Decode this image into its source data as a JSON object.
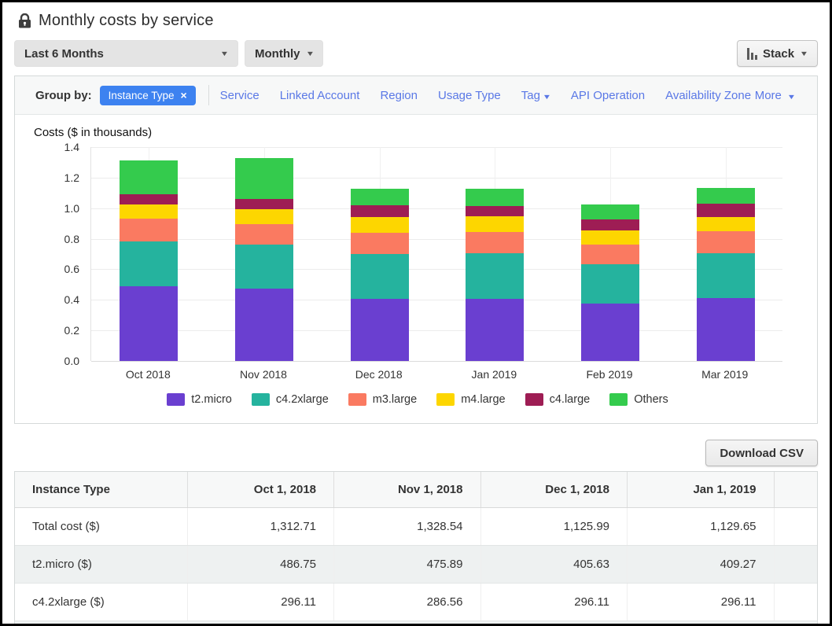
{
  "header": {
    "title": "Monthly costs by service"
  },
  "toolbar": {
    "date_range": "Last 6 Months",
    "granularity": "Monthly",
    "chart_style": "Stack"
  },
  "group_by": {
    "label": "Group by:",
    "active_chip": {
      "label": "Instance Type",
      "close": "×"
    },
    "links": [
      {
        "label": "Service",
        "caret": false
      },
      {
        "label": "Linked Account",
        "caret": false
      },
      {
        "label": "Region",
        "caret": false
      },
      {
        "label": "Usage Type",
        "caret": false
      },
      {
        "label": "Tag",
        "caret": true
      },
      {
        "label": "API Operation",
        "caret": false
      },
      {
        "label": "Availability Zone",
        "caret": false
      }
    ],
    "more": {
      "label": "More",
      "caret": true
    }
  },
  "chart_data": {
    "type": "bar",
    "subtype": "stacked",
    "title": "Costs ($ in thousands)",
    "categories": [
      "Oct 2018",
      "Nov 2018",
      "Dec 2018",
      "Jan 2019",
      "Feb 2019",
      "Mar 2019"
    ],
    "series": [
      {
        "name": "t2.micro",
        "color": "#6a3fd0",
        "values": [
          0.487,
          0.476,
          0.406,
          0.409,
          0.378,
          0.414
        ]
      },
      {
        "name": "c4.2xlarge",
        "color": "#25b39e",
        "values": [
          0.296,
          0.287,
          0.296,
          0.296,
          0.254,
          0.29
        ]
      },
      {
        "name": "m3.large",
        "color": "#fa7a61",
        "values": [
          0.147,
          0.134,
          0.137,
          0.141,
          0.132,
          0.146
        ]
      },
      {
        "name": "m4.large",
        "color": "#fdd600",
        "values": [
          0.094,
          0.095,
          0.101,
          0.099,
          0.091,
          0.094
        ]
      },
      {
        "name": "c4.large",
        "color": "#9e1d54",
        "values": [
          0.07,
          0.071,
          0.081,
          0.07,
          0.072,
          0.085
        ]
      },
      {
        "name": "Others",
        "color": "#34cb4d",
        "values": [
          0.219,
          0.266,
          0.105,
          0.115,
          0.099,
          0.103
        ]
      }
    ],
    "totals": [
      1.3127,
      1.3285,
      1.126,
      1.1297,
      1.026,
      1.132
    ],
    "ylim": [
      0,
      1.4
    ],
    "yticks": [
      0.0,
      0.2,
      0.4,
      0.6,
      0.8,
      1.0,
      1.2,
      1.4
    ],
    "grid": true,
    "legend_position": "bottom"
  },
  "download": {
    "label": "Download CSV"
  },
  "table": {
    "columns": [
      "Instance Type",
      "Oct 1, 2018",
      "Nov 1, 2018",
      "Dec 1, 2018",
      "Jan 1, 2019"
    ],
    "rows": [
      {
        "label": "Total cost ($)",
        "values": [
          "1,312.71",
          "1,328.54",
          "1,125.99",
          "1,129.65"
        ],
        "shaded": false
      },
      {
        "label": "t2.micro ($)",
        "values": [
          "486.75",
          "475.89",
          "405.63",
          "409.27"
        ],
        "shaded": true
      },
      {
        "label": "c4.2xlarge ($)",
        "values": [
          "296.11",
          "286.56",
          "296.11",
          "296.11"
        ],
        "shaded": false
      }
    ]
  }
}
